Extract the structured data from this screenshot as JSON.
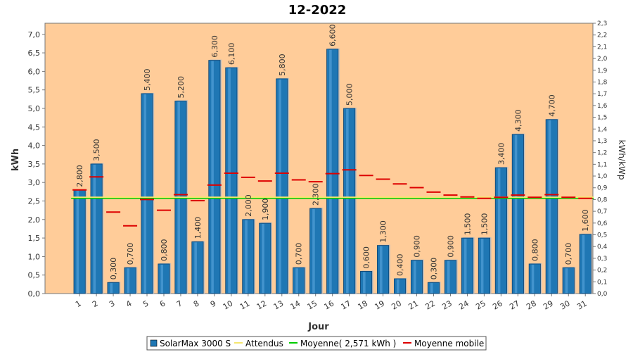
{
  "chart_data": {
    "type": "bar",
    "title": "12-2022",
    "xlabel": "Jour",
    "ylabel": "kWh",
    "y2label": "kWh/kWp",
    "ylim": [
      0,
      7.3
    ],
    "y2lim": [
      0,
      2.3
    ],
    "yticks": [
      "0,0",
      "0,5",
      "1,0",
      "1,5",
      "2,0",
      "2,5",
      "3,0",
      "3,5",
      "4,0",
      "4,5",
      "5,0",
      "5,5",
      "6,0",
      "6,5",
      "7,0"
    ],
    "y2ticks": [
      "0,0",
      "0,1",
      "0,2",
      "0,3",
      "0,4",
      "0,5",
      "0,6",
      "0,7",
      "0,8",
      "0,9",
      "1,0",
      "1,1",
      "1,2",
      "1,3",
      "1,4",
      "1,5",
      "1,6",
      "1,7",
      "1,8",
      "1,9",
      "2,0",
      "2,1",
      "2,2",
      "2,3"
    ],
    "categories": [
      "1",
      "2",
      "3",
      "4",
      "5",
      "6",
      "7",
      "8",
      "9",
      "10",
      "11",
      "12",
      "13",
      "14",
      "15",
      "16",
      "17",
      "18",
      "19",
      "20",
      "21",
      "22",
      "23",
      "24",
      "25",
      "26",
      "27",
      "28",
      "29",
      "30",
      "31"
    ],
    "series": [
      {
        "name": "SolarMax 3000 S",
        "kind": "bar",
        "color": "#1f77b4",
        "values": [
          2.8,
          3.5,
          0.3,
          0.7,
          5.4,
          0.8,
          5.2,
          1.4,
          6.3,
          6.1,
          2.0,
          1.9,
          5.8,
          0.7,
          2.3,
          6.6,
          5.0,
          0.6,
          1.3,
          0.4,
          0.9,
          0.3,
          0.9,
          1.5,
          1.5,
          3.4,
          4.3,
          0.8,
          4.7,
          0.7,
          1.6
        ],
        "value_labels": [
          "2,800",
          "3,500",
          "0,300",
          "0,700",
          "5,400",
          "0,800",
          "5,200",
          "1,400",
          "6,300",
          "6,100",
          "2,000",
          "1,900",
          "5,800",
          "0,700",
          "2,300",
          "6,600",
          "5,000",
          "0,600",
          "1,300",
          "0,400",
          "0,900",
          "0,300",
          "0,900",
          "1,500",
          "1,500",
          "3,400",
          "4,300",
          "0,800",
          "4,700",
          "0,700",
          "1,600"
        ]
      },
      {
        "name": "Attendus",
        "kind": "line",
        "color": "#f5e66e",
        "values": [
          2.6,
          2.6,
          2.6,
          2.6,
          2.6,
          2.6,
          2.6,
          2.6,
          2.6,
          2.6,
          2.6,
          2.6,
          2.6,
          2.6,
          2.6,
          2.6,
          2.6,
          2.6,
          2.6,
          2.6,
          2.6,
          2.6,
          2.6,
          2.6,
          2.6,
          2.6,
          2.6,
          2.6,
          2.6,
          2.6,
          2.6
        ]
      },
      {
        "name": "Moyenne( 2,571 kWh )",
        "kind": "line",
        "color": "#00cc00",
        "values": [
          2.571,
          2.571,
          2.571,
          2.571,
          2.571,
          2.571,
          2.571,
          2.571,
          2.571,
          2.571,
          2.571,
          2.571,
          2.571,
          2.571,
          2.571,
          2.571,
          2.571,
          2.571,
          2.571,
          2.571,
          2.571,
          2.571,
          2.571,
          2.571,
          2.571,
          2.571,
          2.571,
          2.571,
          2.571,
          2.571,
          2.571
        ]
      },
      {
        "name": "Moyenne mobile",
        "kind": "marker",
        "color": "#dd0000",
        "values": [
          2.8,
          3.15,
          2.2,
          1.83,
          2.54,
          2.25,
          2.67,
          2.51,
          2.93,
          3.25,
          3.14,
          3.04,
          3.25,
          3.07,
          3.02,
          3.24,
          3.34,
          3.19,
          3.09,
          2.96,
          2.86,
          2.74,
          2.66,
          2.61,
          2.57,
          2.6,
          2.66,
          2.6,
          2.67,
          2.6,
          2.57
        ]
      }
    ],
    "legend_position": "bottom",
    "grid": false
  }
}
